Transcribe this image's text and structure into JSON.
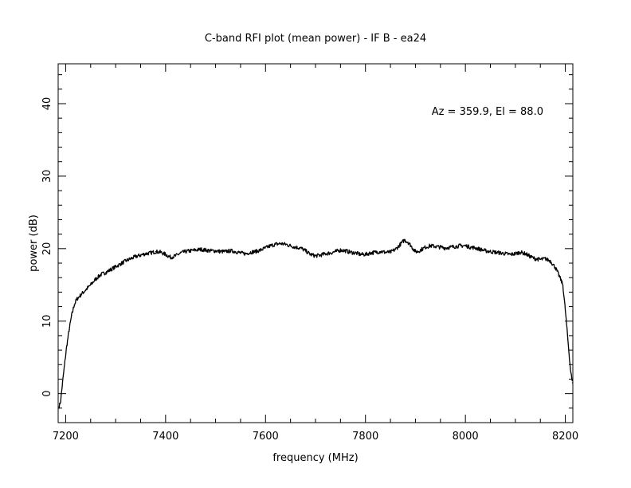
{
  "chart_data": {
    "type": "line",
    "title": "C-band RFI plot (mean power) - IF B - ea24",
    "xlabel": "frequency (MHz)",
    "ylabel": "power (dB)",
    "annotation": "Az = 359.9, El = 88.0",
    "xlim": [
      7185,
      8215
    ],
    "ylim": [
      -4,
      45.5
    ],
    "xticks": [
      7200,
      7400,
      7600,
      7800,
      8000,
      8200
    ],
    "yticks": [
      0,
      10,
      20,
      30,
      40
    ],
    "grid": false,
    "series": [
      {
        "color": "#000000",
        "points": [
          [
            7187,
            -1.8
          ],
          [
            7190,
            -1.0
          ],
          [
            7193,
            1.0
          ],
          [
            7197,
            3.5
          ],
          [
            7202,
            6.5
          ],
          [
            7207,
            8.8
          ],
          [
            7212,
            10.8
          ],
          [
            7217,
            12.2
          ],
          [
            7222,
            13.0
          ],
          [
            7230,
            13.6
          ],
          [
            7240,
            14.3
          ],
          [
            7250,
            15.0
          ],
          [
            7260,
            15.8
          ],
          [
            7270,
            16.4
          ],
          [
            7280,
            16.7
          ],
          [
            7290,
            17.1
          ],
          [
            7300,
            17.5
          ],
          [
            7310,
            17.9
          ],
          [
            7320,
            18.3
          ],
          [
            7330,
            18.6
          ],
          [
            7340,
            18.9
          ],
          [
            7350,
            19.1
          ],
          [
            7360,
            19.3
          ],
          [
            7370,
            19.4
          ],
          [
            7380,
            19.6
          ],
          [
            7390,
            19.5
          ],
          [
            7400,
            19.2
          ],
          [
            7410,
            18.8
          ],
          [
            7420,
            19.0
          ],
          [
            7430,
            19.4
          ],
          [
            7440,
            19.6
          ],
          [
            7450,
            19.7
          ],
          [
            7460,
            19.8
          ],
          [
            7470,
            19.9
          ],
          [
            7480,
            19.8
          ],
          [
            7490,
            19.7
          ],
          [
            7500,
            19.7
          ],
          [
            7510,
            19.6
          ],
          [
            7520,
            19.6
          ],
          [
            7530,
            19.7
          ],
          [
            7540,
            19.6
          ],
          [
            7550,
            19.4
          ],
          [
            7560,
            19.3
          ],
          [
            7570,
            19.5
          ],
          [
            7580,
            19.6
          ],
          [
            7590,
            19.8
          ],
          [
            7600,
            20.1
          ],
          [
            7610,
            20.4
          ],
          [
            7620,
            20.6
          ],
          [
            7630,
            20.7
          ],
          [
            7640,
            20.6
          ],
          [
            7650,
            20.4
          ],
          [
            7660,
            20.2
          ],
          [
            7670,
            20.1
          ],
          [
            7680,
            19.7
          ],
          [
            7690,
            19.2
          ],
          [
            7700,
            19.0
          ],
          [
            7710,
            19.1
          ],
          [
            7720,
            19.3
          ],
          [
            7730,
            19.4
          ],
          [
            7740,
            19.6
          ],
          [
            7750,
            19.8
          ],
          [
            7760,
            19.7
          ],
          [
            7770,
            19.5
          ],
          [
            7780,
            19.4
          ],
          [
            7790,
            19.2
          ],
          [
            7800,
            19.2
          ],
          [
            7810,
            19.4
          ],
          [
            7820,
            19.5
          ],
          [
            7830,
            19.6
          ],
          [
            7840,
            19.5
          ],
          [
            7850,
            19.5
          ],
          [
            7860,
            19.9
          ],
          [
            7870,
            20.6
          ],
          [
            7878,
            21.2
          ],
          [
            7885,
            20.9
          ],
          [
            7890,
            20.5
          ],
          [
            7895,
            20.0
          ],
          [
            7900,
            19.6
          ],
          [
            7905,
            19.6
          ],
          [
            7910,
            19.8
          ],
          [
            7920,
            20.2
          ],
          [
            7930,
            20.4
          ],
          [
            7940,
            20.3
          ],
          [
            7950,
            20.2
          ],
          [
            7960,
            20.1
          ],
          [
            7970,
            20.2
          ],
          [
            7980,
            20.3
          ],
          [
            7990,
            20.4
          ],
          [
            8000,
            20.4
          ],
          [
            8010,
            20.2
          ],
          [
            8020,
            20.1
          ],
          [
            8030,
            19.9
          ],
          [
            8040,
            19.7
          ],
          [
            8050,
            19.6
          ],
          [
            8060,
            19.5
          ],
          [
            8070,
            19.4
          ],
          [
            8080,
            19.3
          ],
          [
            8090,
            19.2
          ],
          [
            8100,
            19.3
          ],
          [
            8110,
            19.5
          ],
          [
            8120,
            19.3
          ],
          [
            8130,
            18.9
          ],
          [
            8140,
            18.6
          ],
          [
            8150,
            18.5
          ],
          [
            8160,
            18.6
          ],
          [
            8170,
            18.3
          ],
          [
            8180,
            17.4
          ],
          [
            8188,
            16.2
          ],
          [
            8195,
            15.0
          ],
          [
            8200,
            11.5
          ],
          [
            8205,
            7.5
          ],
          [
            8210,
            3.5
          ],
          [
            8214,
            1.5
          ]
        ]
      }
    ]
  }
}
